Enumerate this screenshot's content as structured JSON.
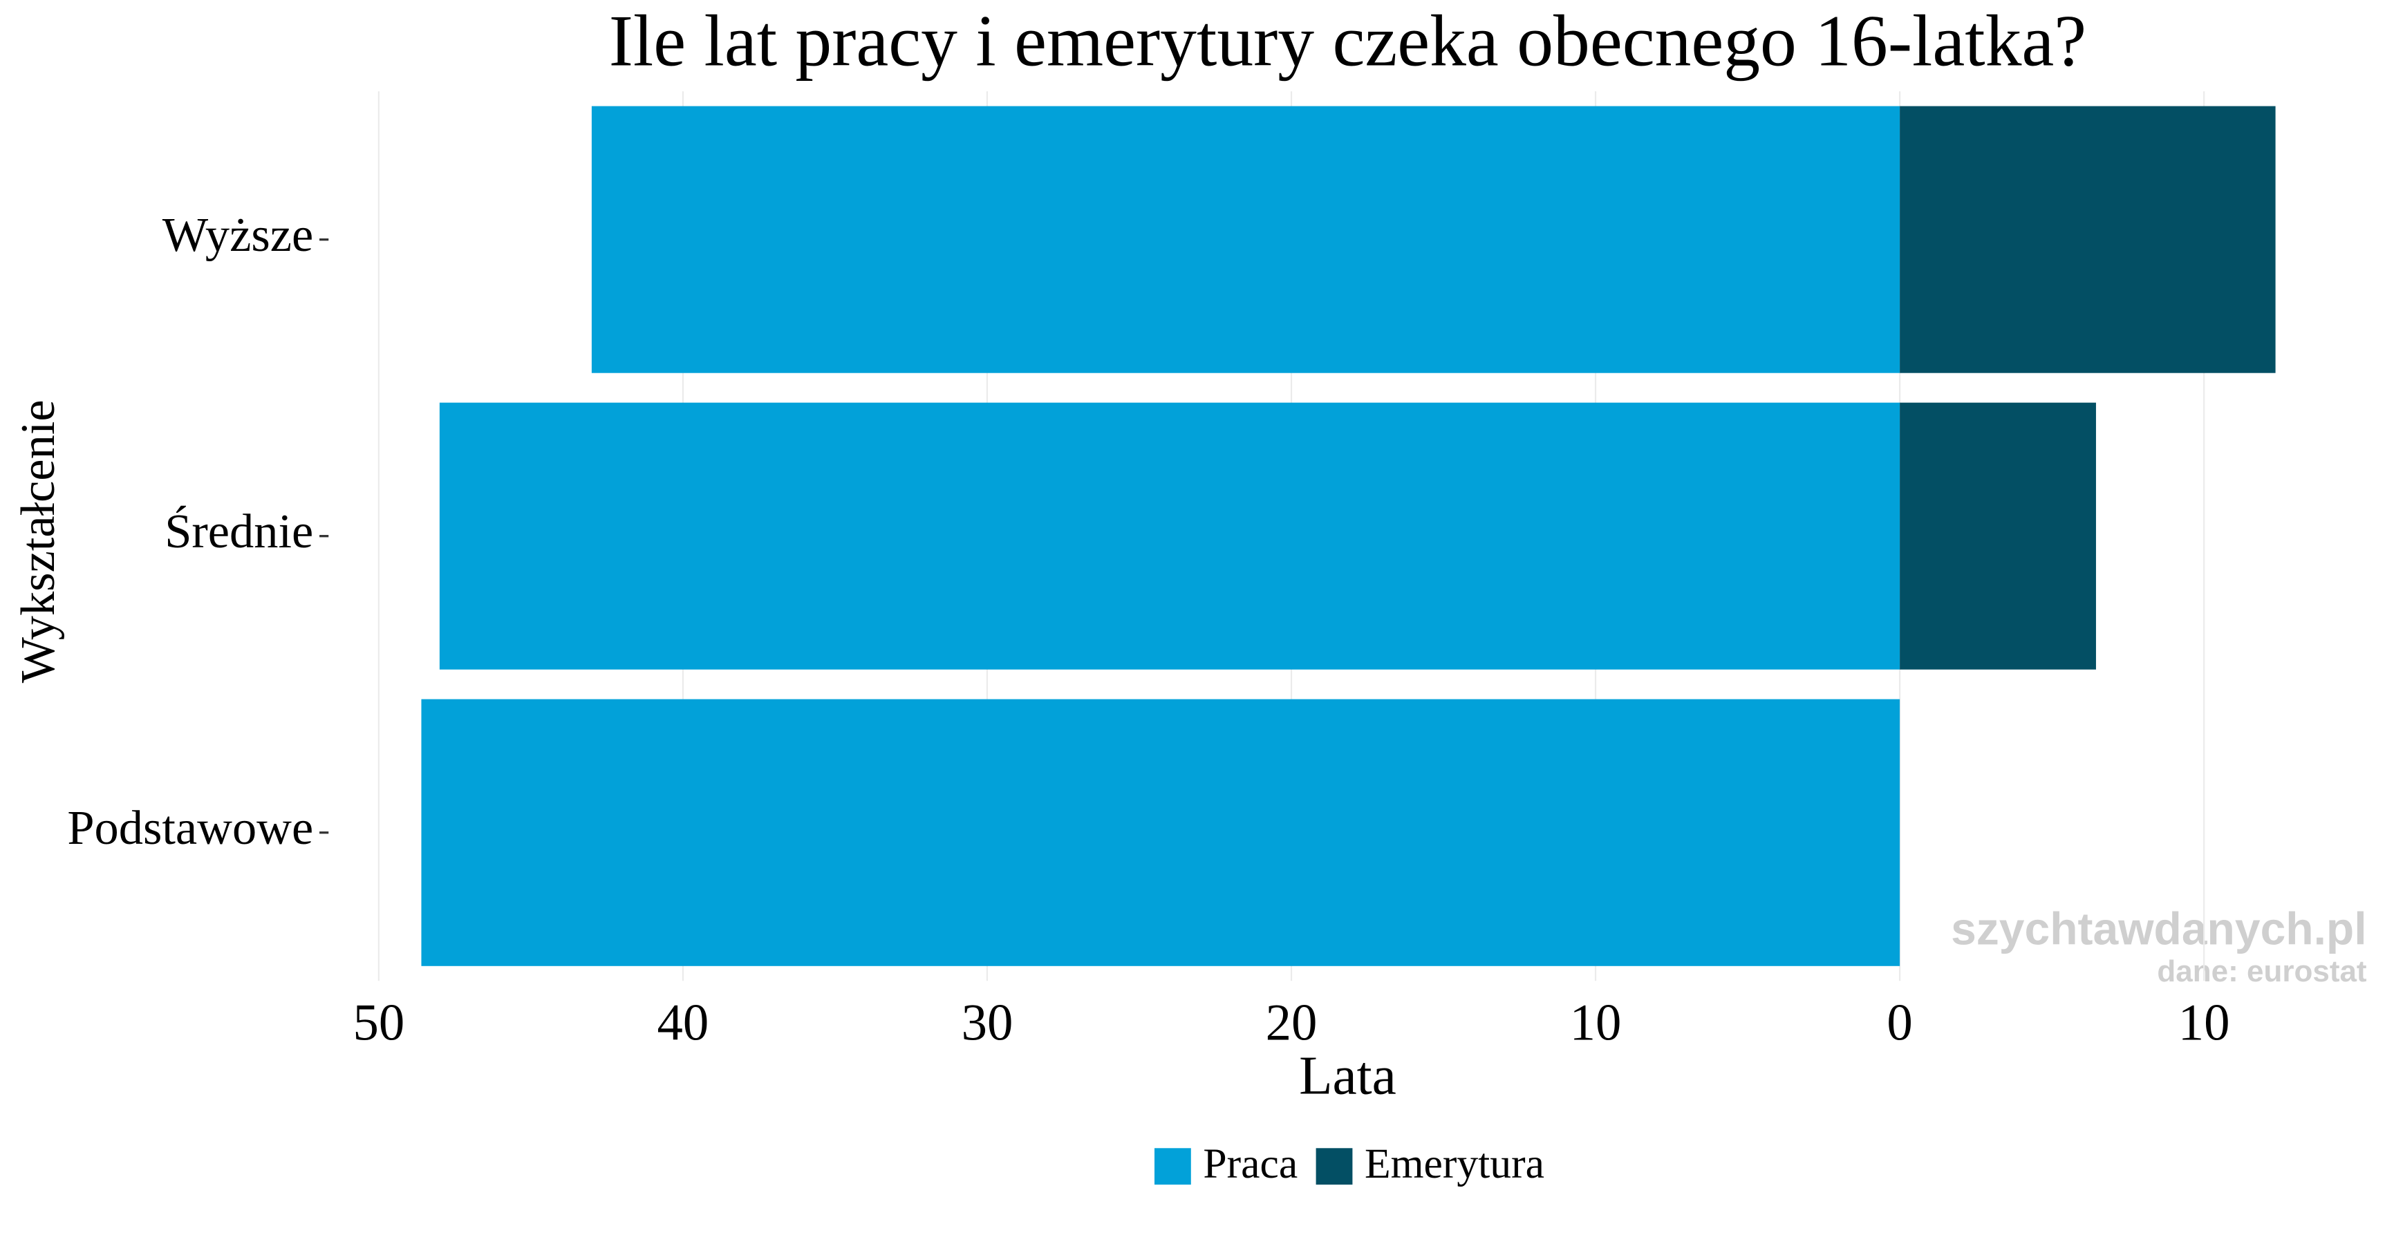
{
  "chart_data": {
    "type": "diverging-bar",
    "title": "Ile lat pracy i emerytury czeka obecnego 16-latka?",
    "x_label": "Lata",
    "y_label": "Wykształcenie",
    "categories": [
      "Wyższe",
      "Średnie",
      "Podstawowe"
    ],
    "series": [
      {
        "name": "Praca",
        "color": "#02a1d9",
        "values": [
          -43,
          -48,
          -48.6
        ]
      },
      {
        "name": "Emerytura",
        "color": "#034f64",
        "values": [
          12.35,
          6.45,
          0
        ]
      }
    ],
    "xlim": [
      -50,
      15.5
    ],
    "xticks": [
      {
        "value": -50,
        "label": "50"
      },
      {
        "value": -40,
        "label": "40"
      },
      {
        "value": -30,
        "label": "30"
      },
      {
        "value": -20,
        "label": "20"
      },
      {
        "value": -10,
        "label": "10"
      },
      0,
      10
    ],
    "grid": true,
    "legend": "bottom",
    "annotations": [
      "szychtawdanych.pl",
      "dane: eurostat"
    ]
  }
}
